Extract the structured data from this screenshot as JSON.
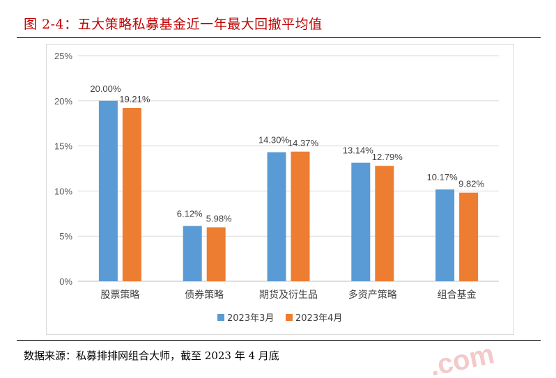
{
  "figure_title": "图 2-4：五大策略私募基金近一年最大回撤平均值",
  "source_note": "数据来源：私募排排网组合大师，截至 2023 年 4 月底",
  "watermark_text": ".com",
  "colors": {
    "series1": "#5b9bd5",
    "series2": "#ed7d31",
    "title": "#c00000"
  },
  "chart_data": {
    "type": "bar",
    "categories": [
      "股票策略",
      "债券策略",
      "期货及衍生品",
      "多资产策略",
      "组合基金"
    ],
    "series": [
      {
        "name": "2023年3月",
        "values": [
          20.0,
          6.12,
          14.3,
          13.14,
          10.17
        ],
        "labels": [
          "20.00%",
          "6.12%",
          "14.30%",
          "13.14%",
          "10.17%"
        ]
      },
      {
        "name": "2023年4月",
        "values": [
          19.21,
          5.98,
          14.37,
          12.79,
          9.82
        ],
        "labels": [
          "19.21%",
          "5.98%",
          "14.37%",
          "12.79%",
          "9.82%"
        ]
      }
    ],
    "yticks": [
      "0%",
      "5%",
      "10%",
      "15%",
      "20%",
      "25%"
    ],
    "ylim": [
      0,
      25
    ],
    "grid": true,
    "legend_position": "bottom"
  }
}
